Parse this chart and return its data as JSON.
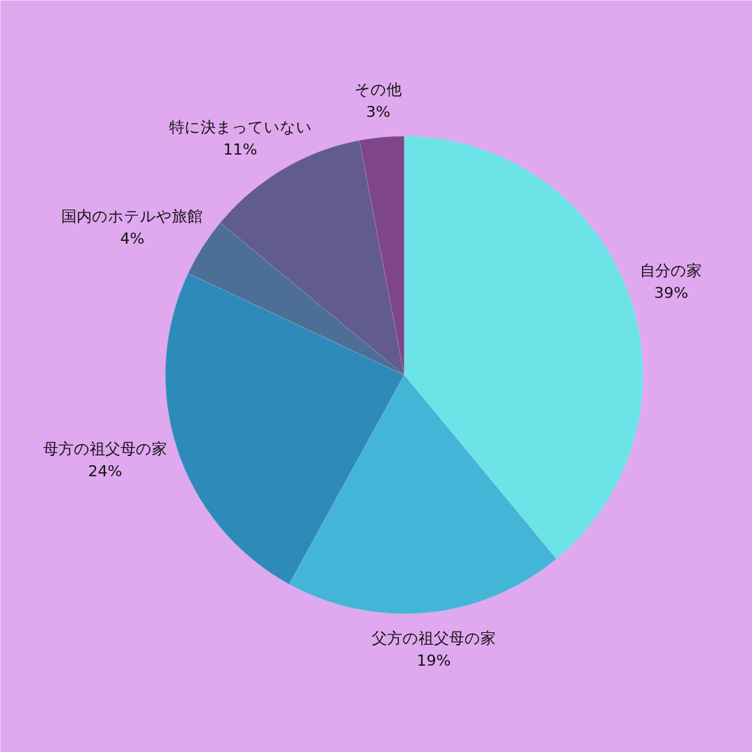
{
  "chart_data": {
    "type": "pie",
    "categories": [
      "自分の家",
      "父方の祖父母の家",
      "母方の祖父母の家",
      "国内のホテルや旅館",
      "特に決まっていない",
      "その他"
    ],
    "values": [
      39,
      19,
      24,
      4,
      11,
      3
    ],
    "colors": [
      "#6ce3e7",
      "#43b5d6",
      "#2e8bb9",
      "#4d6e97",
      "#625b8d",
      "#7e4688"
    ],
    "value_labels": [
      "39%",
      "19%",
      "24%",
      "4%",
      "11%",
      "3%"
    ]
  }
}
